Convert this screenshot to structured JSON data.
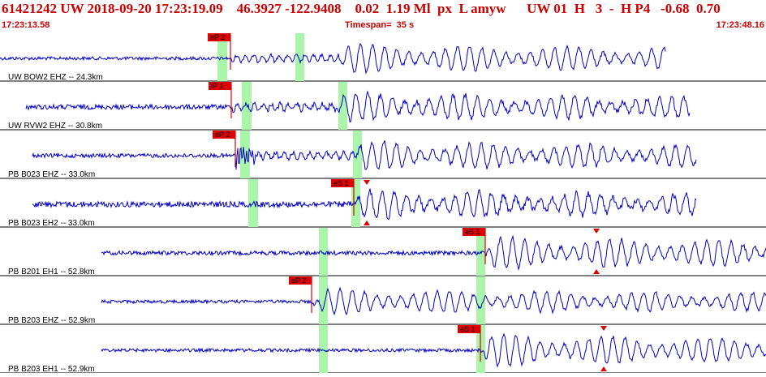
{
  "header": {
    "title": "61421242 UW 2018-09-20 17:23:19.09    46.3927 -122.9408    0.02  1.19 Ml  px  L amyw      UW 01  H   3  -  H P4   -0.68  0.70",
    "start_time": "17:23:13.58",
    "timespan": "Timespan=  35 s",
    "end_time": "17:23:48.16"
  },
  "colors": {
    "trace": "#0000c8",
    "pick": "#dd0000",
    "window": "#aaf5aa",
    "title": "#cc0000"
  },
  "traces": [
    {
      "label": "UW BOW2 EHZ -- 24.3km",
      "picks": [
        {
          "label": "eP 2",
          "type": "P"
        }
      ],
      "windows": 2,
      "onset_level": 0.16,
      "late_onset_level": 0.4
    },
    {
      "label": "UW RVW2 EHZ -- 30.8km",
      "picks": [
        {
          "label": "iP 1",
          "type": "P"
        }
      ],
      "windows": 2
    },
    {
      "label": "PB B023 EHZ -- 33.0km",
      "picks": [
        {
          "label": "eP 2",
          "type": "P"
        }
      ],
      "windows": 2
    },
    {
      "label": "PB B023 EH2 -- 33.0km",
      "picks": [
        {
          "label": "eS 1",
          "type": "S"
        }
      ],
      "windows": 2
    },
    {
      "label": "PB B201 EH1 -- 52.8km",
      "picks": [
        {
          "label": "eS 1",
          "type": "S"
        }
      ],
      "windows": 2
    },
    {
      "label": "PB B203 EHZ -- 52.9km",
      "picks": [
        {
          "label": "eP 2",
          "type": "P"
        }
      ],
      "windows": 2
    },
    {
      "label": "PB B203 EH1 -- 52.9km",
      "picks": [
        {
          "label": "eS 1",
          "type": "S"
        }
      ],
      "windows": 2
    }
  ]
}
